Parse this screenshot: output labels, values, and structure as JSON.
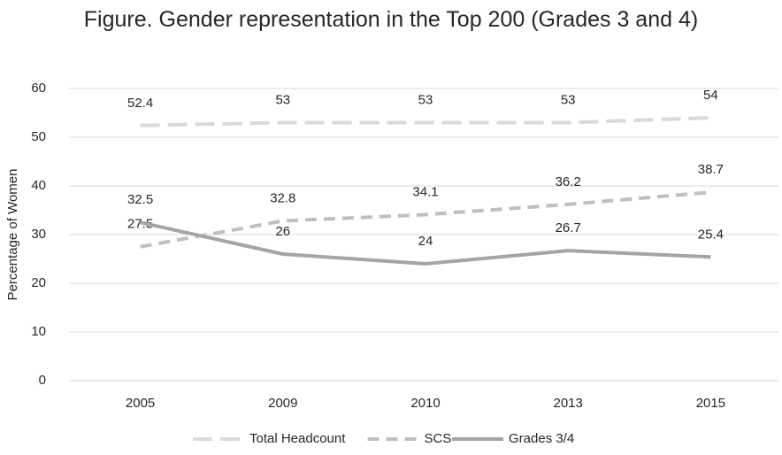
{
  "chart_data": {
    "type": "line",
    "title": "Figure. Gender representation in the Top 200 (Grades 3 and 4)",
    "y_label": "Percentage of Women",
    "categories": [
      "2005",
      "2009",
      "2010",
      "2013",
      "2015"
    ],
    "series": [
      {
        "name": "Total Headcount",
        "color": "#d9d9d9",
        "line_style": "long-dash",
        "values": [
          52.4,
          53,
          53,
          53,
          54
        ]
      },
      {
        "name": "SCS",
        "color": "#bfbfbf",
        "line_style": "dash",
        "values": [
          27.5,
          32.8,
          34.1,
          36.2,
          38.7
        ]
      },
      {
        "name": "Grades 3/4",
        "color": "#a5a5a5",
        "line_style": "solid",
        "values": [
          32.5,
          26,
          24,
          26.7,
          25.4
        ]
      }
    ],
    "ylim": [
      0,
      60
    ],
    "yticks": [
      0,
      10,
      20,
      30,
      40,
      50,
      60
    ],
    "grid": true,
    "legend": "bottom"
  }
}
